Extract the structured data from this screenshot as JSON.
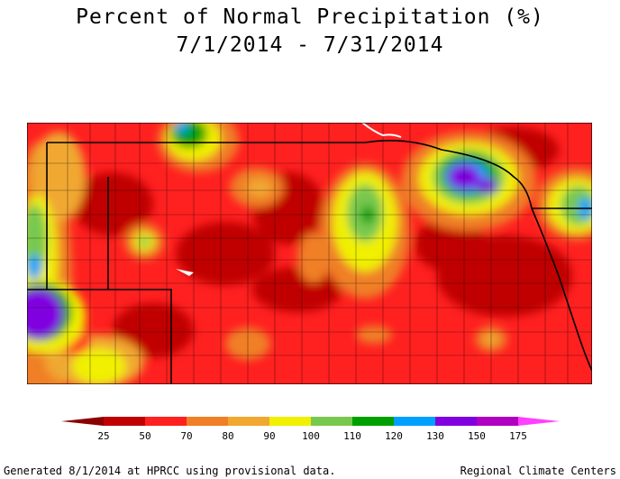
{
  "title_line1": "Percent of Normal Precipitation (%)",
  "title_line2": "7/1/2014 - 7/31/2014",
  "legend": {
    "breaks": [
      "25",
      "50",
      "70",
      "80",
      "90",
      "100",
      "110",
      "120",
      "130",
      "150",
      "175"
    ],
    "colors": [
      "#8b0000",
      "#c00000",
      "#ff2020",
      "#f07f27",
      "#f0a830",
      "#f0f000",
      "#78c850",
      "#00a000",
      "#00a0ff",
      "#8000e0",
      "#b000c0",
      "#ff40ff"
    ]
  },
  "footer_left": "Generated 8/1/2014 at HPRCC using provisional data.",
  "footer_right": "Regional Climate Centers"
}
